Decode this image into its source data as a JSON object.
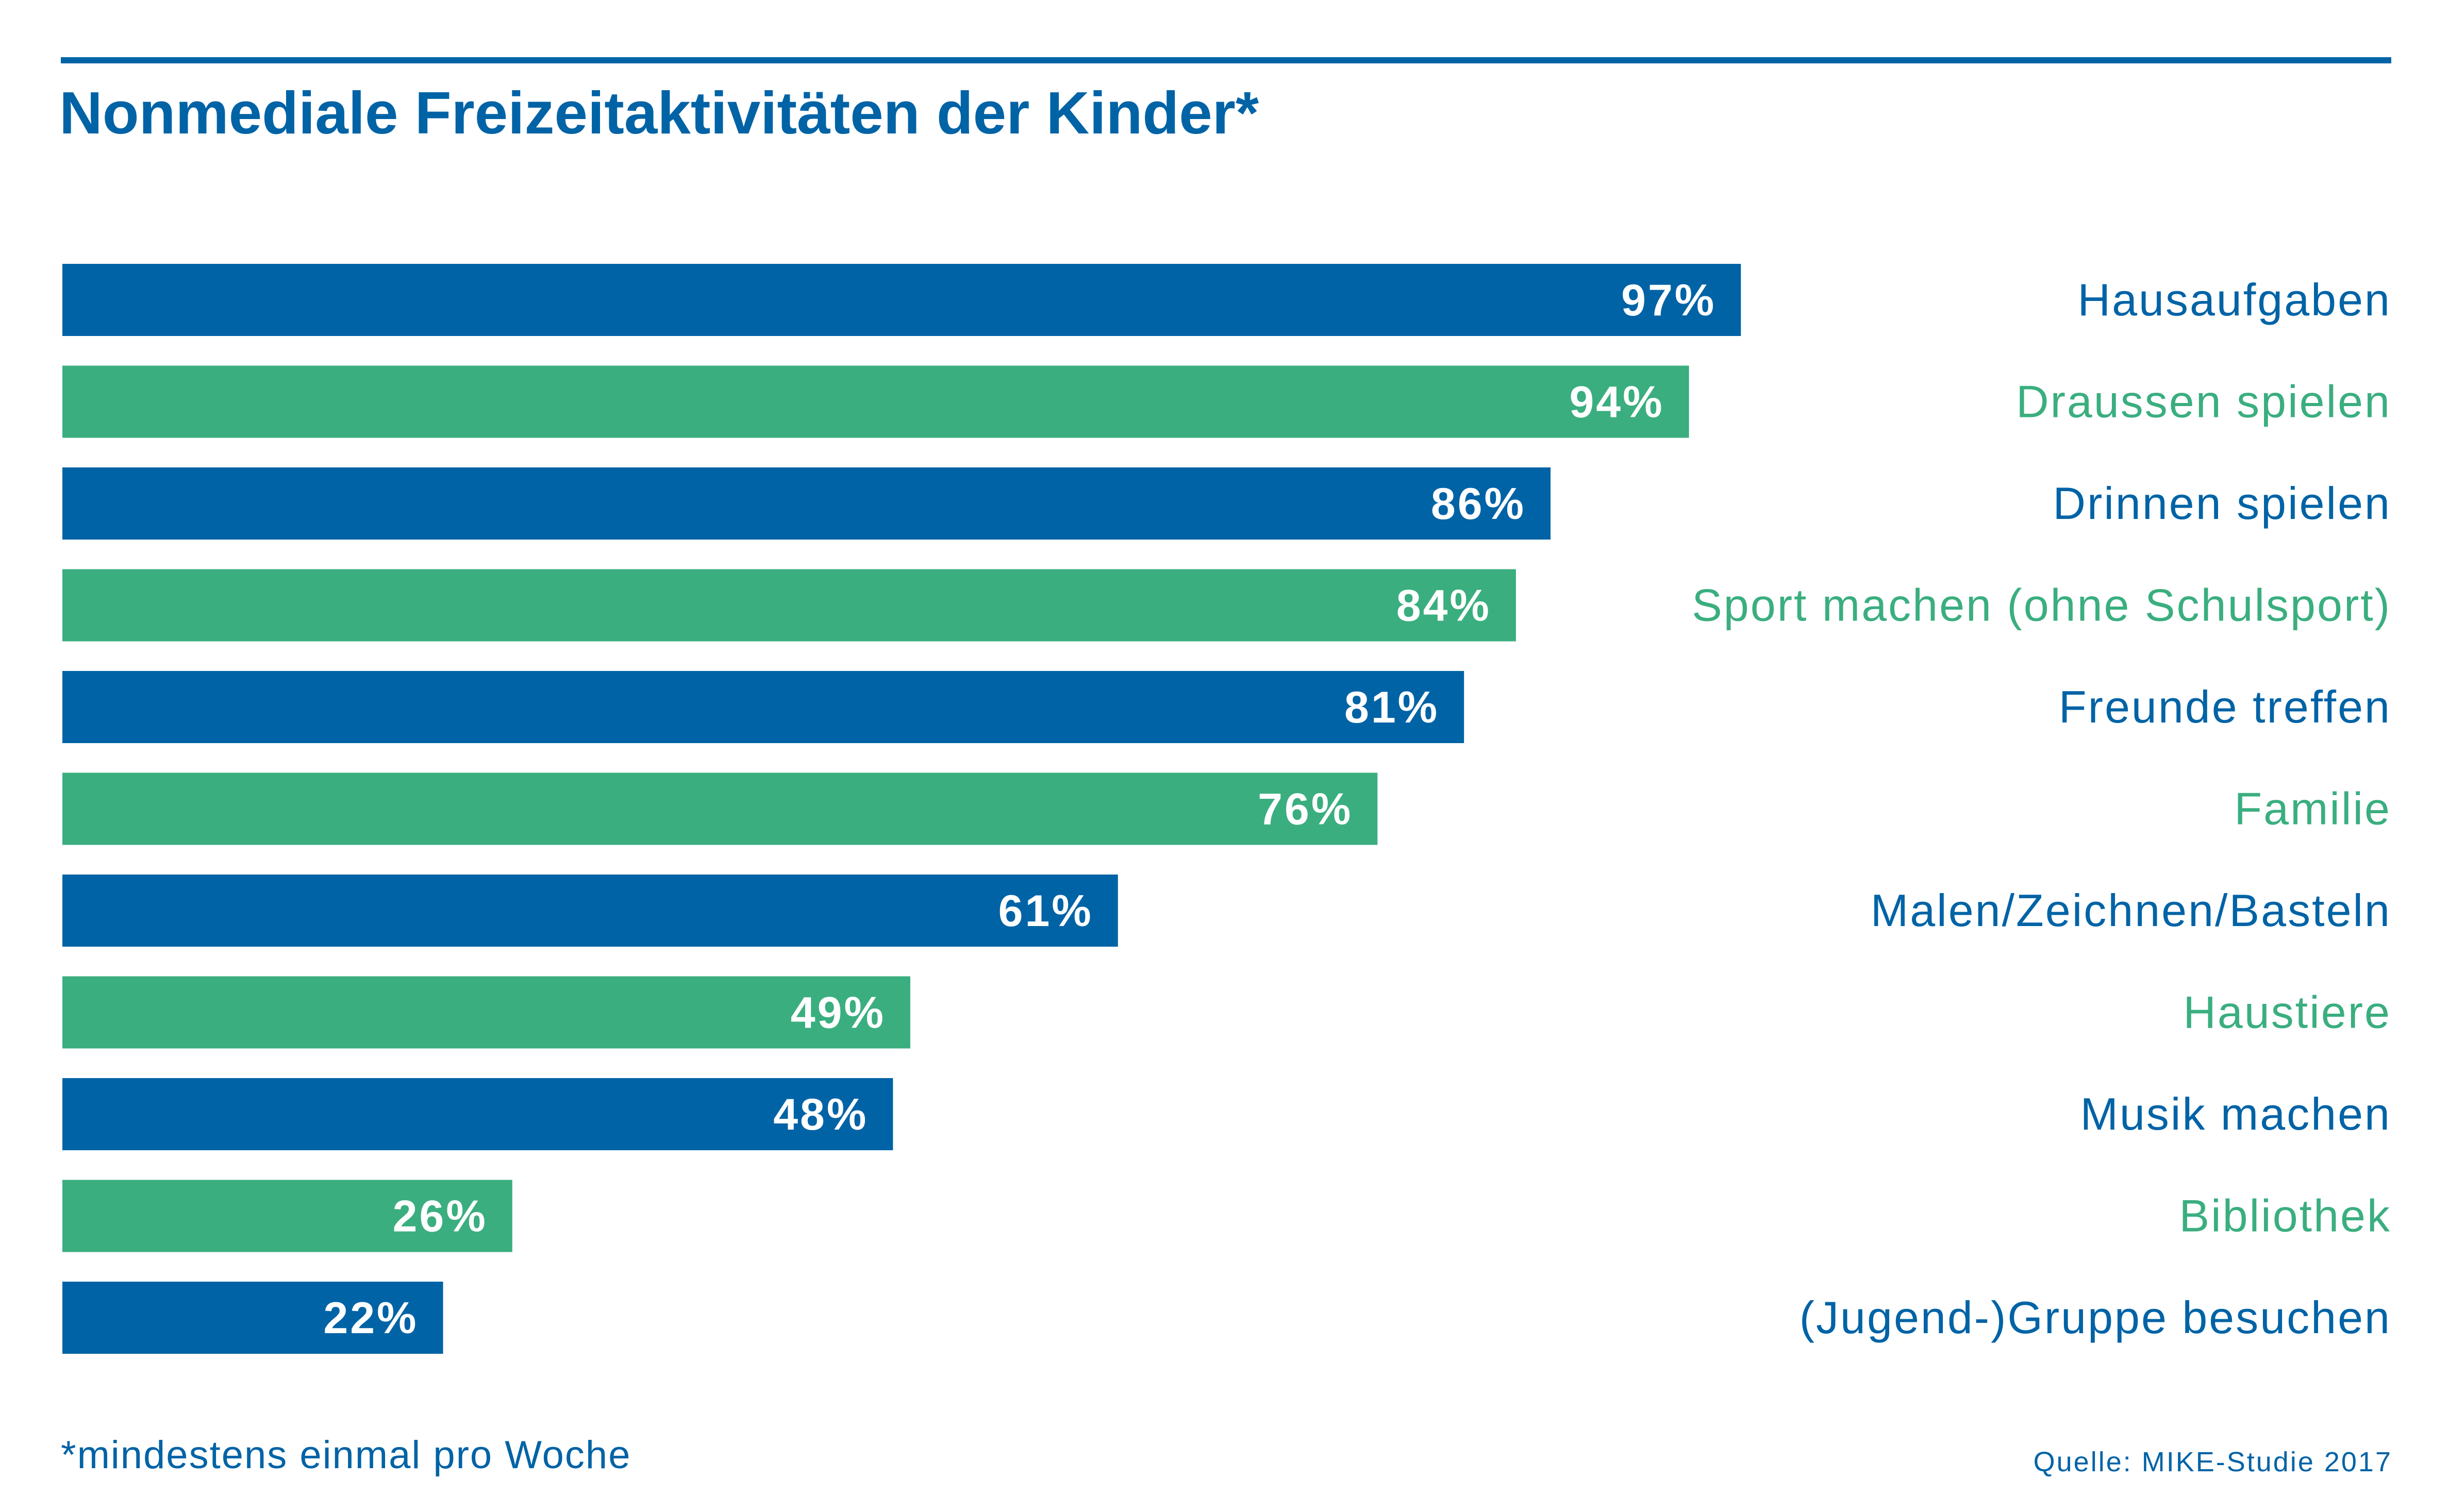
{
  "colors": {
    "blue": "#0063a6",
    "green": "#3aae7f",
    "value_text": "#ffffff"
  },
  "chart_data": {
    "type": "bar",
    "orientation": "horizontal",
    "title": "Nonmediale Freizeitaktivitäten der Kinder*",
    "categories": [
      "Hausaufgaben",
      "Draussen spielen",
      "Drinnen spielen",
      "Sport machen (ohne Schulsport)",
      "Freunde treffen",
      "Familie",
      "Malen/Zeichnen/Basteln",
      "Haustiere",
      "Musik machen",
      "Bibliothek",
      "(Jugend-)Gruppe besuchen"
    ],
    "values": [
      97,
      94,
      86,
      84,
      81,
      76,
      61,
      49,
      48,
      26,
      22
    ],
    "value_labels": [
      "97%",
      "94%",
      "86%",
      "84%",
      "81%",
      "76%",
      "61%",
      "49%",
      "48%",
      "26%",
      "22%"
    ],
    "bar_colors": [
      "#0063a6",
      "#3aae7f",
      "#0063a6",
      "#3aae7f",
      "#0063a6",
      "#3aae7f",
      "#0063a6",
      "#3aae7f",
      "#0063a6",
      "#3aae7f",
      "#0063a6"
    ],
    "xlim": [
      0,
      100
    ],
    "grid": false,
    "legend": "none",
    "label_placement": "right",
    "footnote": "*mindestens einmal pro Woche",
    "source": "Quelle: MIKE-Studie 2017"
  }
}
